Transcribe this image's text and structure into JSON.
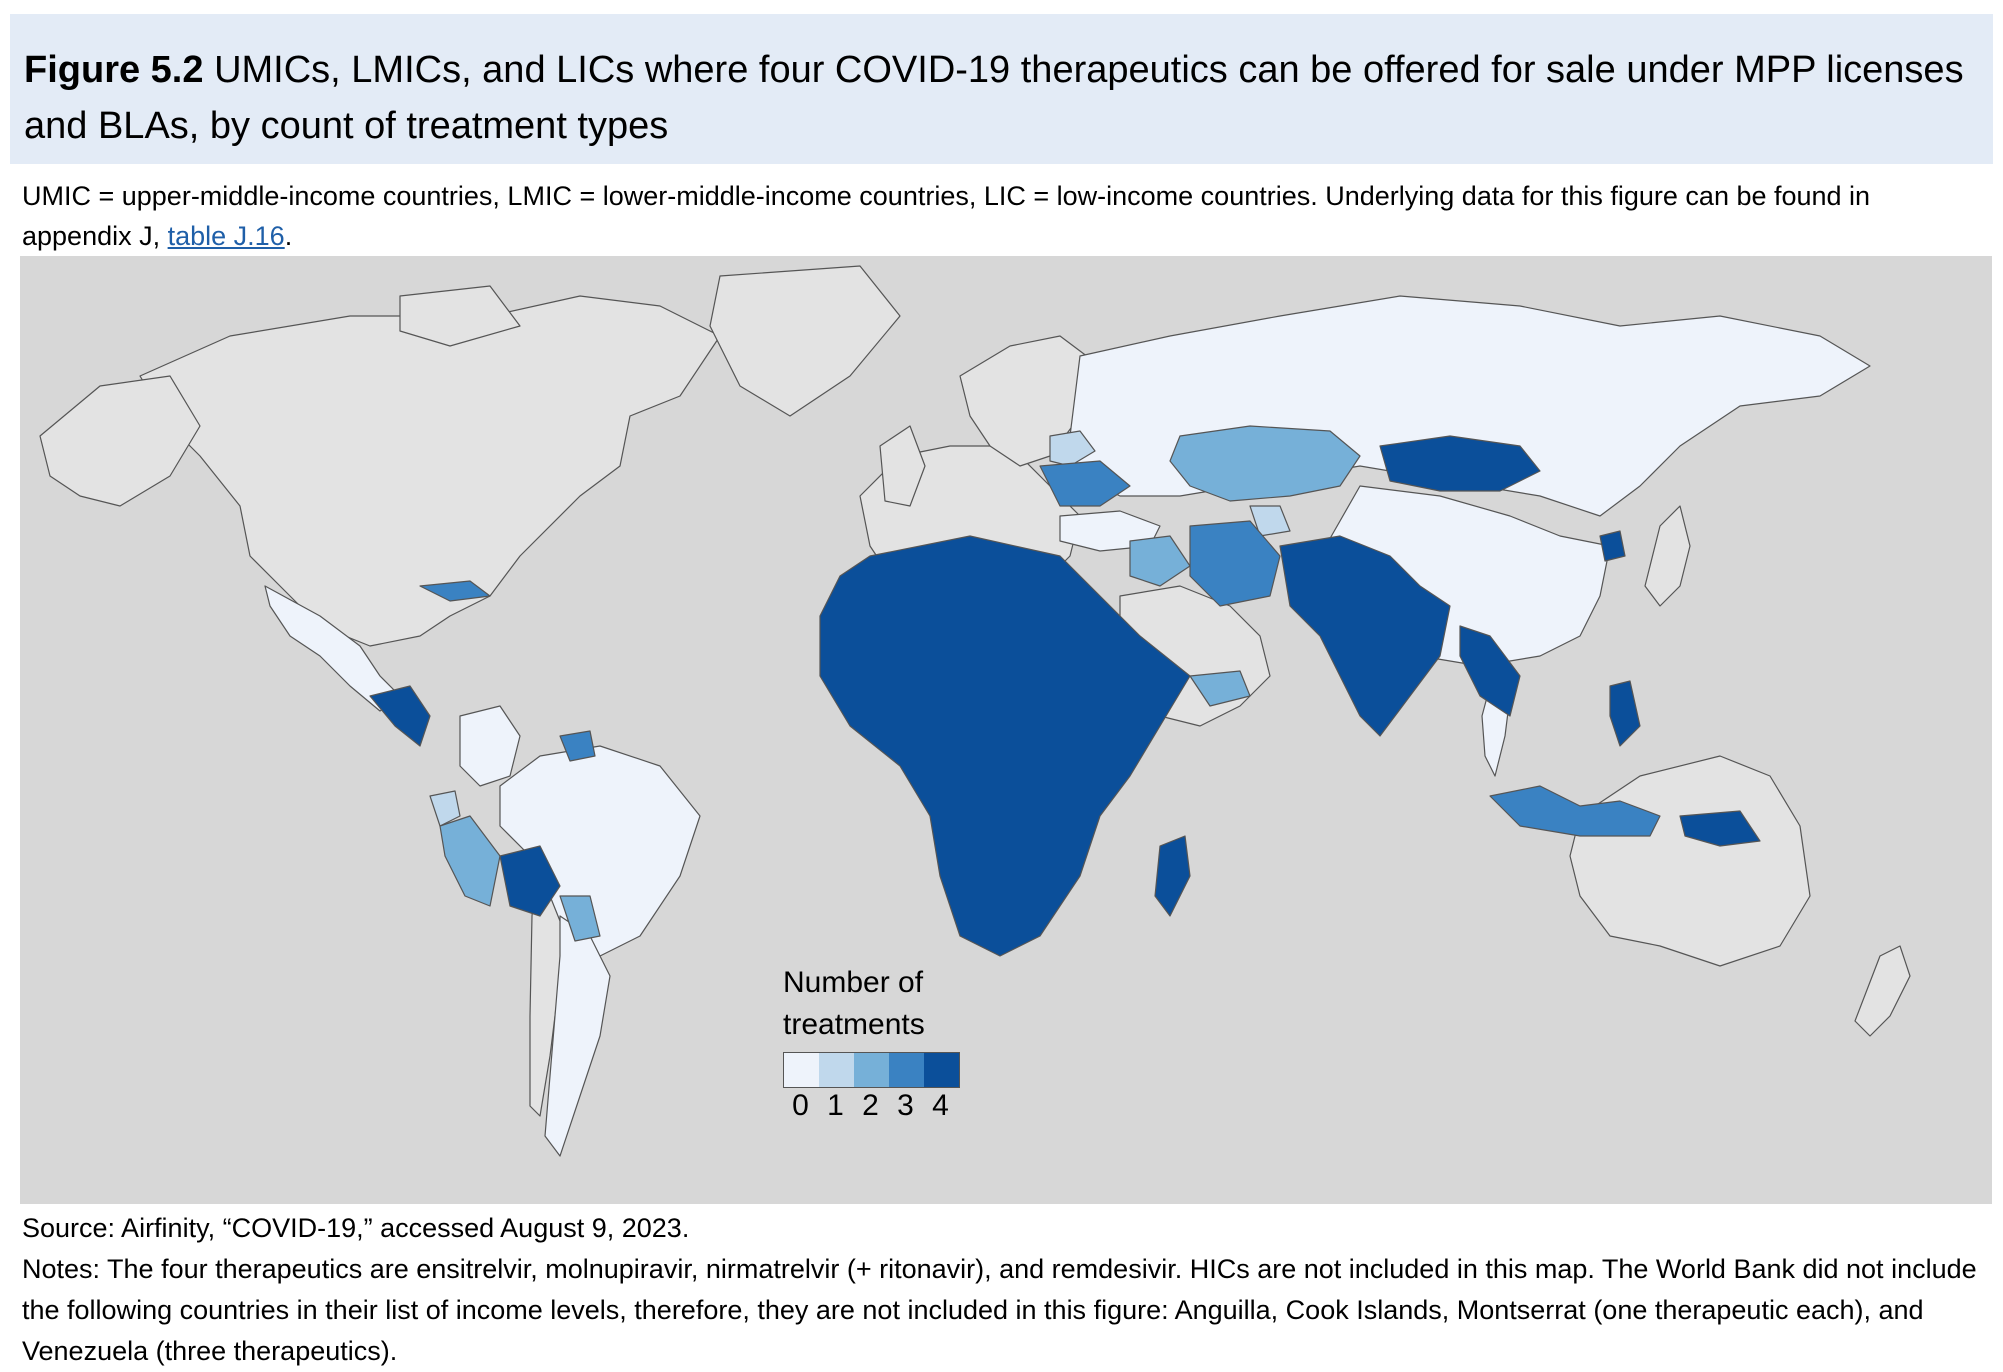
{
  "figure": {
    "label": "Figure 5.2",
    "title": "UMICs, LMICs, and LICs where four COVID-19 therapeutics can be offered for sale under MPP licenses and BLAs, by count of treatment types",
    "subtitle_pre": "UMIC = upper-middle-income countries, LMIC = lower-middle-income countries, LIC = low-income countries. Underlying data for this figure can be found in appendix J, ",
    "subtitle_link": "table J.16",
    "subtitle_post": "."
  },
  "legend": {
    "title": "Number of treatments",
    "items": [
      {
        "label": "0",
        "color": "#eef3fb"
      },
      {
        "label": "1",
        "color": "#c0d8ec"
      },
      {
        "label": "2",
        "color": "#76b0d8"
      },
      {
        "label": "3",
        "color": "#3a82c2"
      },
      {
        "label": "4",
        "color": "#0b4f9a"
      }
    ]
  },
  "colors": {
    "not_included": "#e3e3e3",
    "ocean": "#d7d7d7",
    "border": "#555555"
  },
  "source": "Source: Airfinity, “COVID-19,” accessed August 9, 2023.",
  "notes": "Notes: The four therapeutics are ensitrelvir, molnupiravir, nirmatrelvir (+ ritonavir), and remdesivir. HICs are not included in this map. The World Bank did not include the following countries in their list of income levels, therefore, they are not included in this figure: Anguilla, Cook Islands, Montserrat (one therapeutic each), and Venezuela (three therapeutics)."
}
